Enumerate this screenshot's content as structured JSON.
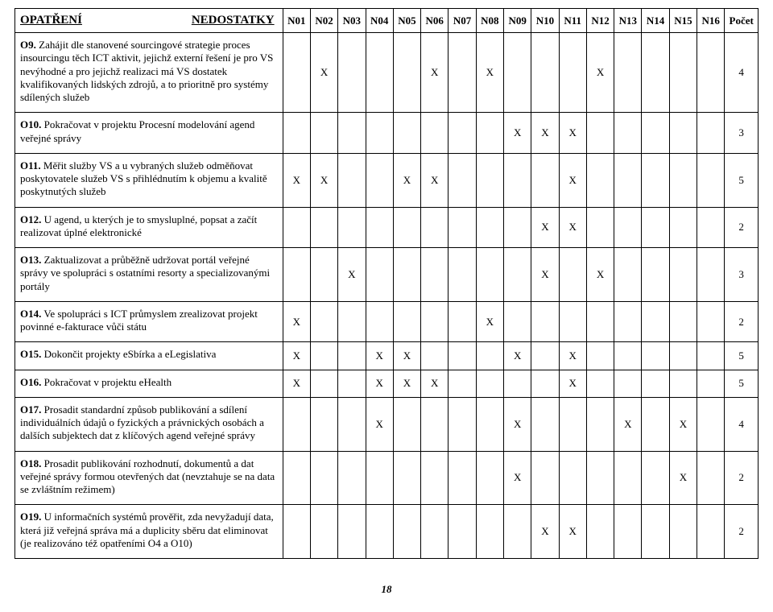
{
  "header": {
    "opatreni": "OPATŘENÍ",
    "nedostatky": "NEDOSTATKY",
    "cols": [
      "N01",
      "N02",
      "N03",
      "N04",
      "N05",
      "N06",
      "N07",
      "N08",
      "N09",
      "N10",
      "N11",
      "N12",
      "N13",
      "N14",
      "N15",
      "N16"
    ],
    "pocet": "Počet"
  },
  "rows": [
    {
      "label": "O9.",
      "text": "Zahájit dle stanovené sourcingové strategie proces insourcingu těch ICT aktivit, jejichž externí řešení je pro VS nevýhodné a pro jejichž realizaci má VS dostatek kvalifikovaných lidských zdrojů, a to prioritně pro systémy sdílených služeb",
      "marks": [
        "",
        "X",
        "",
        "",
        "",
        "X",
        "",
        "X",
        "",
        "",
        "",
        "X",
        "",
        "",
        "",
        ""
      ],
      "count": "4"
    },
    {
      "label": "O10.",
      "text": "Pokračovat v projektu Procesní modelování agend veřejné správy",
      "marks": [
        "",
        "",
        "",
        "",
        "",
        "",
        "",
        "",
        "X",
        "X",
        "X",
        "",
        "",
        "",
        "",
        ""
      ],
      "count": "3"
    },
    {
      "label": "O11.",
      "text": "Měřit služby VS a u vybraných služeb odměňovat poskytovatele služeb VS s přihlédnutím k objemu a kvalitě poskytnutých služeb",
      "marks": [
        "X",
        "X",
        "",
        "",
        "X",
        "X",
        "",
        "",
        "",
        "",
        "X",
        "",
        "",
        "",
        "",
        ""
      ],
      "count": "5"
    },
    {
      "label": "O12.",
      "text": "U agend, u kterých je to smysluplné, popsat a začít realizovat úplné elektronické",
      "marks": [
        "",
        "",
        "",
        "",
        "",
        "",
        "",
        "",
        "",
        "X",
        "X",
        "",
        "",
        "",
        "",
        ""
      ],
      "count": "2"
    },
    {
      "label": "O13.",
      "text": "Zaktualizovat a průběžně udržovat portál veřejné správy ve spolupráci s ostatními resorty a specializovanými portály",
      "marks": [
        "",
        "",
        "X",
        "",
        "",
        "",
        "",
        "",
        "",
        "X",
        "",
        "X",
        "",
        "",
        "",
        ""
      ],
      "count": "3"
    },
    {
      "label": "O14.",
      "text": "Ve spolupráci s ICT průmyslem zrealizovat projekt povinné e-fakturace vůči státu",
      "marks": [
        "X",
        "",
        "",
        "",
        "",
        "",
        "",
        "X",
        "",
        "",
        "",
        "",
        "",
        "",
        "",
        ""
      ],
      "count": "2"
    },
    {
      "label": "O15.",
      "text": "Dokončit projekty eSbírka a eLegislativa",
      "marks": [
        "X",
        "",
        "",
        "X",
        "X",
        "",
        "",
        "",
        "X",
        "",
        "X",
        "",
        "",
        "",
        "",
        ""
      ],
      "count": "5"
    },
    {
      "label": "O16.",
      "text": "Pokračovat v projektu eHealth",
      "marks": [
        "X",
        "",
        "",
        "X",
        "X",
        "X",
        "",
        "",
        "",
        "",
        "X",
        "",
        "",
        "",
        "",
        ""
      ],
      "count": "5"
    },
    {
      "label": "O17.",
      "text": "Prosadit standardní způsob publikování a sdílení individuálních údajů o fyzických a právnických osobách a dalších subjektech dat z klíčových agend veřejné správy",
      "marks": [
        "",
        "",
        "",
        "X",
        "",
        "",
        "",
        "",
        "X",
        "",
        "",
        "",
        "X",
        "",
        "X",
        ""
      ],
      "count": "4"
    },
    {
      "label": "O18.",
      "text": "Prosadit publikování rozhodnutí, dokumentů a dat veřejné správy formou otevřených dat (nevztahuje se na data se zvláštním režimem)",
      "marks": [
        "",
        "",
        "",
        "",
        "",
        "",
        "",
        "",
        "X",
        "",
        "",
        "",
        "",
        "",
        "X",
        ""
      ],
      "count": "2"
    },
    {
      "label": "O19.",
      "text": "U informačních systémů prověřit, zda nevyžadují data, která již veřejná správa má a duplicity sběru dat eliminovat (je realizováno též opatřeními O4 a O10)",
      "marks": [
        "",
        "",
        "",
        "",
        "",
        "",
        "",
        "",
        "",
        "X",
        "X",
        "",
        "",
        "",
        "",
        ""
      ],
      "count": "2"
    }
  ],
  "colors": {
    "border": "#000000",
    "text": "#000000",
    "background": "#ffffff"
  },
  "page_number": "18"
}
